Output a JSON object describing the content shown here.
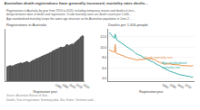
{
  "title": "Australian death registrations have generally increased, mortality rates declin...",
  "subtitle": [
    "Registrations in Australia by year from 1910 to 2020, including temporary visitors and deaths in terri...",
    "delays between date of death and registration. Crude mortality rates are death counts per 1,000...",
    "Age-standardised mortality keeps the same age structure as the Australian population in June 2..."
  ],
  "source": [
    "Source: Australian Bureau of Stati...",
    "Deaths, Year of registration, Summary data, Sex, States, Territories and..."
  ],
  "chart_data": [
    {
      "type": "bar",
      "title": "Registrations in Australia",
      "x_label": "Registration year",
      "x": [
        1910,
        1911,
        1912,
        1913,
        1914,
        1915,
        1916,
        1917,
        1918,
        1919,
        1920,
        1921,
        1922,
        1923,
        1924,
        1925,
        1926,
        1927,
        1928,
        1929,
        1930,
        1931,
        1932,
        1933,
        1934,
        1935,
        1936,
        1937,
        1938,
        1939,
        1940,
        1941,
        1942,
        1943,
        1944,
        1945,
        1946,
        1947,
        1948,
        1949,
        1950,
        1951,
        1952,
        1953,
        1954,
        1955,
        1956,
        1957,
        1958,
        1959,
        1960,
        1961,
        1962,
        1963,
        1964,
        1965,
        1966,
        1967,
        1968,
        1969,
        1970,
        1971,
        1972,
        1973,
        1974,
        1975,
        1976,
        1977,
        1978,
        1979,
        1980,
        1981,
        1982,
        1983,
        1984,
        1985,
        1986,
        1987,
        1988,
        1989,
        1990,
        1991,
        1992,
        1993,
        1994,
        1995,
        1996,
        1997,
        1998,
        1999,
        2000,
        2001,
        2002,
        2003,
        2004,
        2005,
        2006,
        2007,
        2008,
        2009,
        2010,
        2011,
        2012,
        2013,
        2014,
        2015,
        2016,
        2017,
        2018,
        2019,
        2020
      ],
      "values": [
        52000,
        53000,
        54000,
        55000,
        56000,
        57000,
        55000,
        54000,
        56000,
        55000,
        57000,
        58000,
        59000,
        60000,
        61000,
        62000,
        63000,
        63000,
        64000,
        65000,
        65000,
        65000,
        64000,
        65000,
        66000,
        67000,
        68000,
        69000,
        70000,
        71000,
        70000,
        68000,
        67000,
        68000,
        69000,
        71000,
        73000,
        74000,
        75000,
        76000,
        77000,
        79000,
        80000,
        81000,
        82000,
        83000,
        84000,
        85000,
        86000,
        88000,
        89000,
        90000,
        91000,
        92000,
        93000,
        94000,
        95000,
        96000,
        97000,
        98000,
        99000,
        101000,
        102000,
        103000,
        104000,
        107000,
        108000,
        109000,
        110000,
        111000,
        113000,
        114000,
        115000,
        116000,
        117000,
        119000,
        120000,
        121000,
        122000,
        121000,
        120000,
        121000,
        122000,
        123000,
        124000,
        129000,
        130000,
        131000,
        128000,
        127000,
        128000,
        130000,
        131000,
        132000,
        133000,
        130000,
        134000,
        136000,
        138000,
        140000,
        143000,
        145000,
        147000,
        149000,
        151000,
        155000,
        157000,
        159000,
        162000,
        161000,
        160000
      ],
      "color": "#1a1a1a",
      "xlim": [
        1908,
        2022
      ],
      "xticks": [
        1980,
        1990,
        2000,
        2010,
        2020
      ],
      "ylim": [
        0,
        185000
      ],
      "yticks": [],
      "tick_labels": "x",
      "grid": false
    },
    {
      "type": "line",
      "title": "Deaths per 1,000 people",
      "x_label": "Registration year",
      "x": [
        1910,
        1911,
        1912,
        1913,
        1914,
        1915,
        1916,
        1917,
        1918,
        1919,
        1920,
        1921,
        1922,
        1923,
        1924,
        1925,
        1926,
        1927,
        1928,
        1929,
        1930,
        1931,
        1932,
        1933,
        1934,
        1935,
        1936,
        1937,
        1938,
        1939,
        1940,
        1941,
        1942,
        1943,
        1944,
        1945,
        1946,
        1947,
        1948,
        1949,
        1950,
        1951,
        1952,
        1953,
        1954,
        1955,
        1956,
        1957,
        1958,
        1959,
        1960,
        1961,
        1962,
        1963,
        1964,
        1965,
        1966,
        1967,
        1968,
        1969,
        1970,
        1971,
        1972,
        1973,
        1974,
        1975,
        1976,
        1977,
        1978,
        1979,
        1980,
        1981,
        1982,
        1983,
        1984,
        1985,
        1986,
        1987,
        1988,
        1989,
        1990,
        1991,
        1992,
        1993,
        1994,
        1995,
        1996,
        1997,
        1998,
        1999,
        2000,
        2001,
        2002,
        2003,
        2004,
        2005,
        2006,
        2007,
        2008,
        2009,
        2010,
        2011,
        2012,
        2013,
        2014,
        2015,
        2016,
        2017,
        2018,
        2019,
        2020
      ],
      "series": [
        {
          "color": "#3aafa9",
          "values": [
            12.8,
            12.6,
            12.5,
            12.3,
            12.2,
            12.0,
            11.9,
            11.7,
            12.5,
            11.5,
            11.4,
            11.3,
            11.2,
            11.1,
            11.0,
            10.9,
            10.8,
            10.7,
            10.6,
            10.5,
            10.4,
            10.2,
            10.1,
            10.0,
            9.9,
            9.8,
            9.7,
            9.6,
            9.6,
            9.5,
            9.5,
            9.3,
            9.2,
            9.0,
            8.9,
            8.8,
            8.7,
            8.7,
            8.6,
            8.5,
            8.5,
            8.4,
            8.3,
            8.2,
            8.1,
            8.0,
            7.9,
            7.9,
            7.8,
            7.7,
            7.7,
            7.6,
            7.5,
            7.5,
            7.4,
            7.3,
            7.2,
            7.2,
            7.1,
            7.0,
            7.0,
            6.9,
            6.8,
            6.7,
            6.6,
            6.5,
            6.5,
            6.4,
            6.3,
            6.2,
            6.1,
            6.0,
            5.9,
            5.8,
            5.8,
            5.7,
            5.7,
            5.6,
            5.6,
            5.5,
            5.4,
            5.3,
            5.3,
            5.2,
            5.2,
            5.1,
            5.1,
            5.0,
            5.0,
            4.9,
            4.9,
            4.8,
            4.8,
            4.7,
            4.7,
            4.7,
            4.6,
            4.6,
            4.6,
            4.6,
            4.5,
            4.5,
            4.5,
            4.4,
            4.4,
            4.4,
            4.4,
            4.3,
            4.3,
            4.3,
            4.3
          ]
        },
        {
          "color": "#e8914a",
          "values": [
            9.5,
            9.4,
            9.4,
            9.3,
            9.2,
            9.2,
            9.1,
            9.0,
            10.5,
            8.9,
            8.8,
            8.7,
            8.7,
            8.6,
            8.6,
            8.5,
            8.5,
            8.4,
            8.4,
            8.3,
            8.3,
            8.2,
            8.1,
            8.1,
            8.0,
            8.0,
            7.9,
            7.9,
            7.8,
            7.8,
            7.8,
            7.7,
            7.7,
            7.7,
            7.6,
            7.6,
            7.5,
            7.6,
            7.6,
            7.6,
            7.6,
            7.7,
            7.7,
            7.7,
            7.7,
            7.7,
            7.7,
            7.7,
            7.8,
            7.8,
            7.8,
            7.9,
            7.8,
            7.8,
            7.8,
            7.8,
            7.7,
            7.7,
            7.7,
            7.6,
            7.6,
            7.5,
            7.4,
            7.3,
            7.2,
            7.2,
            7.1,
            7.1,
            7.0,
            6.9,
            6.9,
            6.8,
            6.8,
            6.7,
            6.8,
            6.8,
            6.8,
            6.9,
            6.9,
            6.9,
            6.8,
            6.8,
            6.7,
            6.7,
            6.7,
            6.7,
            6.7,
            6.6,
            6.6,
            6.6,
            6.6,
            6.6,
            6.6,
            6.6,
            6.5,
            6.5,
            6.5,
            6.5,
            6.5,
            6.5,
            6.5,
            6.4,
            6.4,
            6.4,
            6.4,
            6.4,
            6.4,
            6.4,
            6.5,
            6.4,
            6.6
          ]
        }
      ],
      "xlim": [
        1908,
        2022
      ],
      "xticks": [
        1980,
        1990,
        2000,
        2010
      ],
      "ylim": [
        3.5,
        13.5
      ],
      "yticks": [
        {
          "value": 4.0,
          "label": "4.0"
        },
        {
          "value": 6.0,
          "label": "6.0"
        },
        {
          "value": 8.0,
          "label": "8.0"
        },
        {
          "value": 10.0,
          "label": "10.0"
        },
        {
          "value": 12.0,
          "label": "12.0"
        }
      ],
      "grid": true,
      "annotations": [
        {
          "text": "Age standardised\nmortality rate",
          "x": 1995,
          "y": 5.5,
          "color": "#3aafa9"
        },
        {
          "text": "Crude mortality rate",
          "x": 1975,
          "y": 7.5,
          "color": "#e8914a"
        }
      ]
    }
  ]
}
